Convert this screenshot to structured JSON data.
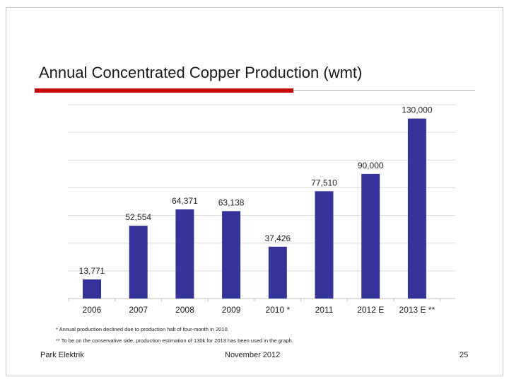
{
  "slide": {
    "title": "Annual Concentrated Copper Production (wmt)",
    "footnotes": [
      "* Annual production declined due to production halt of four-month in 2010.",
      "** To be on the conservative side, production estimation of 130k for 2013 has been used in the graph."
    ],
    "footer": {
      "left": "Park Elektrik",
      "center": "November 2012",
      "page_number": "25"
    },
    "colors": {
      "accent_red": "#cc0000",
      "bar": "#333399"
    }
  },
  "chart_data": {
    "type": "bar",
    "title": "Annual Concentrated Copper Production (wmt)",
    "xlabel": "",
    "ylabel": "",
    "categories": [
      "2006",
      "2007",
      "2008",
      "2009",
      "2010 *",
      "2011",
      "2012 E",
      "2013 E **"
    ],
    "values": [
      13771,
      52554,
      64371,
      63138,
      37426,
      77510,
      90000,
      130000
    ],
    "value_labels": [
      "13,771",
      "52,554",
      "64,371",
      "63,138",
      "37,426",
      "77,510",
      "90,000",
      "130,000"
    ],
    "ylim": [
      0,
      140000
    ],
    "grid": true,
    "legend": "none"
  }
}
